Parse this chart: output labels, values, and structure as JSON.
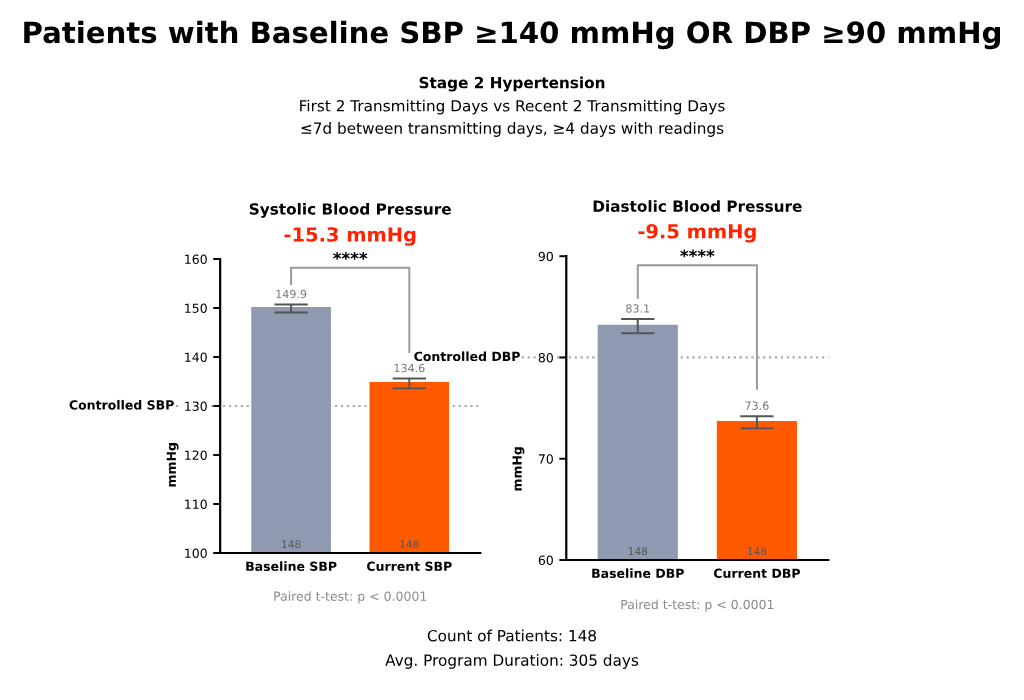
{
  "chart_data": [
    {
      "type": "bar",
      "title": "Systolic Blood Pressure",
      "subtitle": "-15.3 mmHg",
      "ylabel": "mmHg",
      "categories": [
        "Baseline SBP",
        "Current SBP"
      ],
      "values": [
        149.9,
        134.6
      ],
      "colors": [
        "#8f9ab0",
        "#ff5a00"
      ],
      "errors": [
        0.8,
        1.0
      ],
      "data_labels": true,
      "ylim": [
        100,
        160
      ],
      "yticks": [
        100,
        110,
        120,
        130,
        140,
        150,
        160
      ],
      "grid": false,
      "ref_lines": [
        {
          "axis": "y",
          "value": 130,
          "label": "Controlled SBP",
          "color": "#aaaaaa",
          "line_style": "dotted"
        }
      ],
      "annotations": [
        "Patients with Baseline SBP ≥140 mmHg OR DBP ≥90 mmHg",
        "Stage 2 Hypertension",
        "First 2 Transmitting Days vs Recent 2 Transmitting Days",
        "≤7d between transmitting days, ≥4 days with readings",
        "Count of Patients: 148",
        "Avg. Program Duration: 305 days",
        "****",
        "Paired t-test: p < 0.0001",
        "148",
        "148"
      ]
    },
    {
      "type": "bar",
      "title": "Diastolic Blood Pressure",
      "subtitle": "-9.5 mmHg",
      "ylabel": "mmHg",
      "categories": [
        "Baseline DBP",
        "Current DBP"
      ],
      "values": [
        83.1,
        73.6
      ],
      "colors": [
        "#8f9ab0",
        "#ff5a00"
      ],
      "errors": [
        0.7,
        0.6
      ],
      "data_labels": true,
      "ylim": [
        60,
        90
      ],
      "yticks": [
        60,
        70,
        80,
        90
      ],
      "grid": false,
      "ref_lines": [
        {
          "axis": "y",
          "value": 80,
          "label": "Controlled DBP",
          "color": "#aaaaaa",
          "line_style": "dotted"
        }
      ],
      "annotations": [
        "****",
        "Paired t-test: p < 0.0001",
        "148",
        "148"
      ]
    }
  ]
}
